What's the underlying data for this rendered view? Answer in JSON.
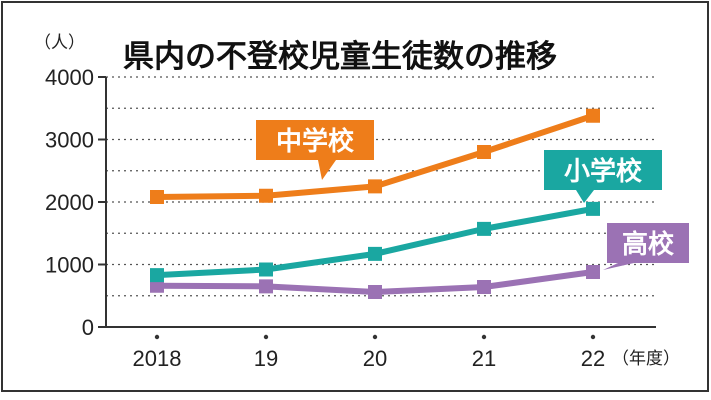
{
  "chart_data": {
    "type": "line",
    "title": "県内の不登校児童生徒数の推移",
    "ylabel": "（人）",
    "xlabel": "（年度）",
    "ylim": [
      0,
      4000
    ],
    "yticks": [
      "0",
      "1000",
      "2000",
      "3000",
      "4000"
    ],
    "categories": [
      "2018",
      "19",
      "20",
      "21",
      "22"
    ],
    "gridlines": "dotted",
    "series": [
      {
        "name": "中学校",
        "color": "#ee7d1a",
        "values": [
          2080,
          2100,
          2250,
          2800,
          3380
        ]
      },
      {
        "name": "小学校",
        "color": "#1aa7a1",
        "values": [
          830,
          920,
          1170,
          1570,
          1890
        ]
      },
      {
        "name": "高校",
        "color": "#9b72b4",
        "values": [
          660,
          650,
          560,
          640,
          880
        ]
      }
    ]
  }
}
